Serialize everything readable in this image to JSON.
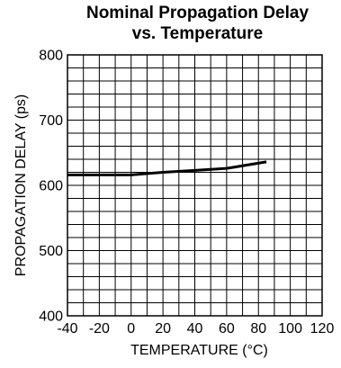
{
  "chart_data": {
    "type": "line",
    "title_lines": [
      "Nominal Propagation Delay",
      "vs. Temperature"
    ],
    "xlabel": "TEMPERATURE (°C)",
    "ylabel": "PROPAGATION DELAY (ps)",
    "xlim": [
      -40,
      120
    ],
    "ylim": [
      400,
      800
    ],
    "x_ticks": [
      -40,
      -20,
      0,
      20,
      40,
      60,
      80,
      100,
      120
    ],
    "y_ticks": [
      400,
      500,
      600,
      700,
      800
    ],
    "grid": true,
    "grid_x_step": 10,
    "grid_y_step": 20,
    "series": [
      {
        "x": [
          -40,
          0,
          20,
          40,
          60,
          85
        ],
        "y": [
          616,
          616,
          620,
          623,
          626,
          636
        ]
      }
    ],
    "colors": {
      "line": "#000000",
      "grid": "#000000",
      "background": "#ffffff"
    }
  }
}
